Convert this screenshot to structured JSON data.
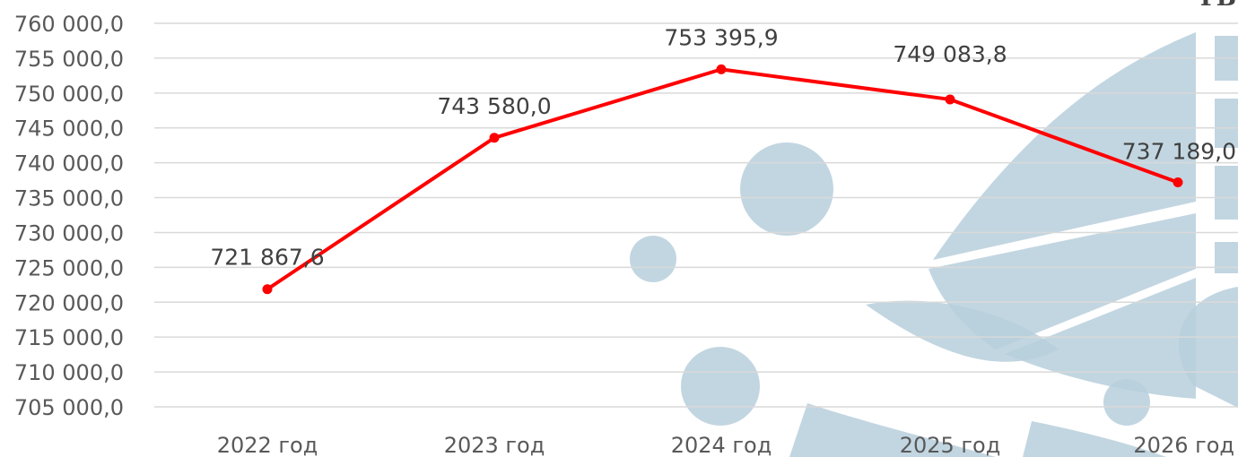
{
  "watermark": {
    "color": "#b7cfdc",
    "corner_text": "ГБ"
  },
  "chart_data": {
    "type": "line",
    "title": "",
    "xlabel": "",
    "ylabel": "",
    "categories": [
      "2022 год",
      "2023 год",
      "2024 год",
      "2025 год",
      "2026 год"
    ],
    "series": [
      {
        "color": "#ff0000",
        "values": [
          721867.6,
          743580.0,
          753395.9,
          749083.8,
          737189.0
        ],
        "labels": [
          "721 867,6",
          "743 580,0",
          "753 395,9",
          "749 083,8",
          "737 189,0"
        ]
      }
    ],
    "ylim": [
      705000,
      760000
    ],
    "ytick_values": [
      760000,
      755000,
      750000,
      745000,
      740000,
      735000,
      730000,
      725000,
      720000,
      715000,
      710000,
      705000
    ],
    "ytick_labels": [
      "760 000,0",
      "755 000,0",
      "750 000,0",
      "745 000,0",
      "740 000,0",
      "735 000,0",
      "730 000,0",
      "725 000,0",
      "720 000,0",
      "715 000,0",
      "710 000,0",
      "705 000,0"
    ],
    "grid": true,
    "legend": "none"
  }
}
